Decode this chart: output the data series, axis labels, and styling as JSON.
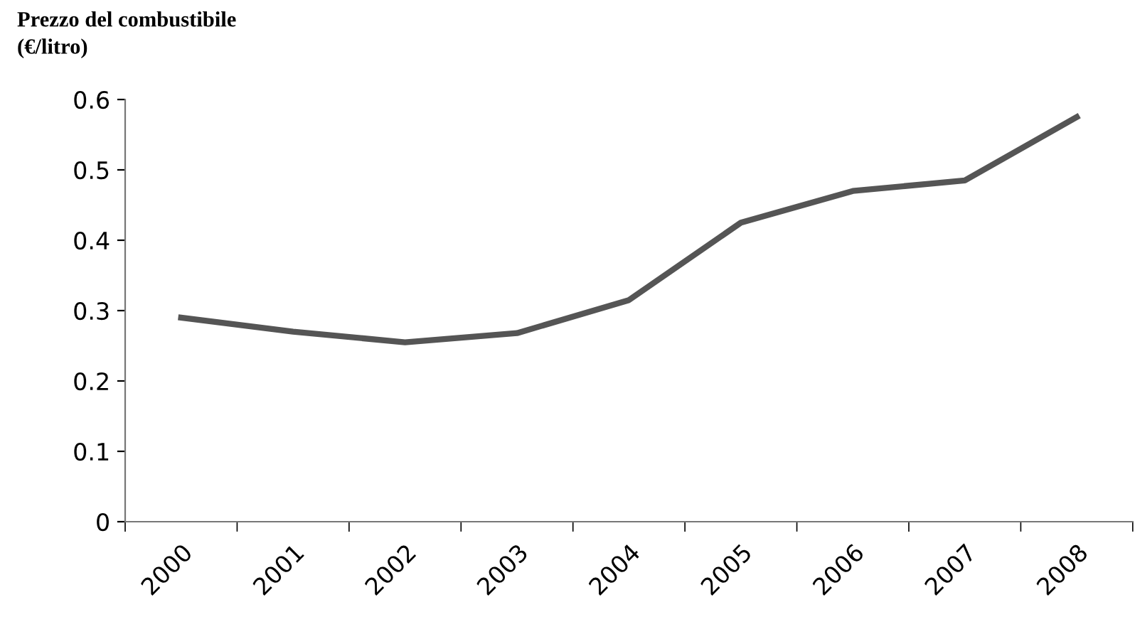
{
  "chart_data": {
    "type": "line",
    "title": "Prezzo del combustibile\n(€/litro)",
    "categories": [
      "2000",
      "2001",
      "2002",
      "2003",
      "2004",
      "2005",
      "2006",
      "2007",
      "2008"
    ],
    "series": [
      {
        "color": "#555555",
        "values": [
          0.29,
          0.27,
          0.255,
          0.268,
          0.315,
          0.425,
          0.47,
          0.485,
          0.575
        ]
      }
    ],
    "ylim": [
      0,
      0.6
    ],
    "yticks": [
      0,
      0.1,
      0.2,
      0.3,
      0.4,
      0.5,
      0.6
    ],
    "grid": false,
    "legend": false,
    "marker": "none",
    "line_style": "solid"
  }
}
